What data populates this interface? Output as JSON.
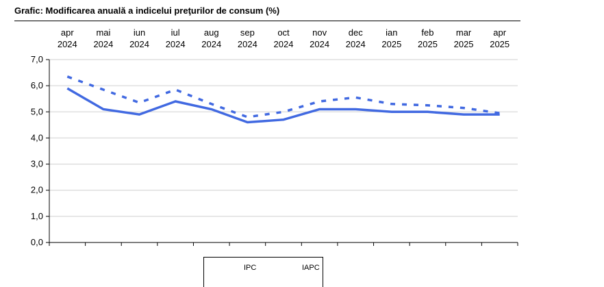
{
  "chart_data": {
    "type": "line",
    "title": "Grafic: Modificarea anuală a indicelui preţurilor de consum (%)",
    "categories": [
      [
        "apr",
        "2024"
      ],
      [
        "mai",
        "2024"
      ],
      [
        "iun",
        "2024"
      ],
      [
        "iul",
        "2024"
      ],
      [
        "aug",
        "2024"
      ],
      [
        "sep",
        "2024"
      ],
      [
        "oct",
        "2024"
      ],
      [
        "nov",
        "2024"
      ],
      [
        "dec",
        "2024"
      ],
      [
        "ian",
        "2025"
      ],
      [
        "feb",
        "2025"
      ],
      [
        "mar",
        "2025"
      ],
      [
        "apr",
        "2025"
      ]
    ],
    "series": [
      {
        "name": "IPC",
        "style": "solid",
        "color": "#4169E1",
        "values": [
          5.9,
          5.1,
          4.9,
          5.4,
          5.1,
          4.6,
          4.7,
          5.1,
          5.1,
          5.0,
          5.0,
          4.9,
          4.9
        ]
      },
      {
        "name": "IAPC",
        "style": "dashed",
        "color": "#4169E1",
        "values": [
          6.35,
          5.85,
          5.35,
          5.85,
          5.3,
          4.8,
          5.0,
          5.4,
          5.55,
          5.3,
          5.25,
          5.15,
          4.95
        ]
      }
    ],
    "yticks": [
      "0,0",
      "1,0",
      "2,0",
      "3,0",
      "4,0",
      "5,0",
      "6,0",
      "7,0"
    ],
    "ylim": [
      0,
      7
    ],
    "grid": "horizontal",
    "legend": "bottom"
  }
}
